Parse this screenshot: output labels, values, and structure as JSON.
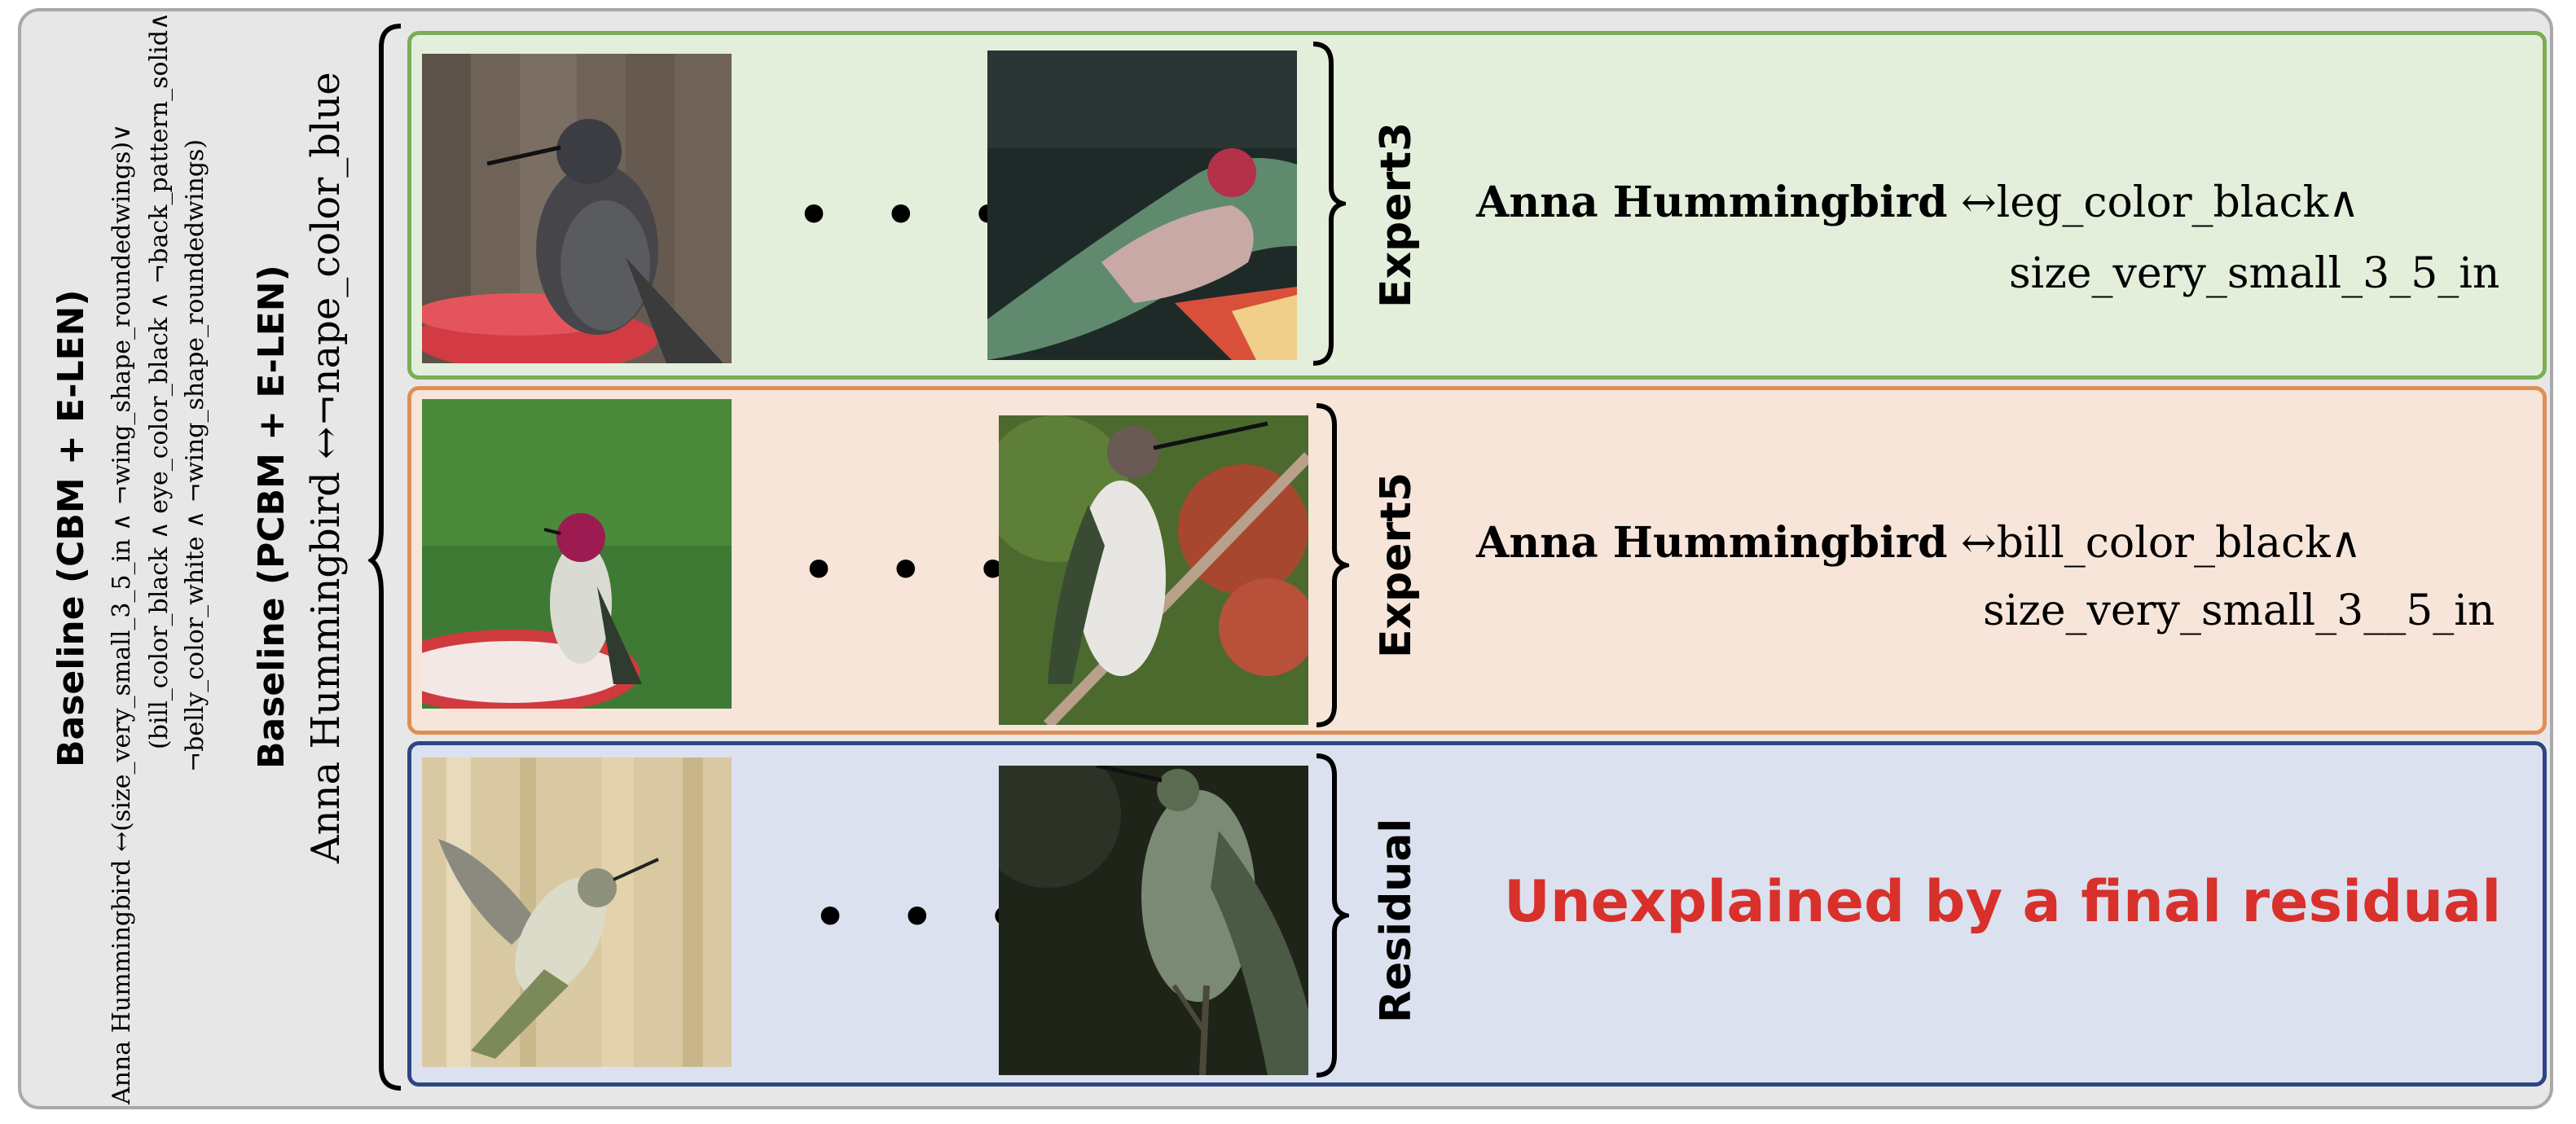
{
  "baseline_cbm": {
    "title": "Baseline (CBM + E-LEN)",
    "line1_class": "Anna Hummingbird",
    "line1_rest": " ↔(size_very_small_3_5_in ∧ ¬wing_shape_roundedwings)∨",
    "line2": "(bill_color_black ∧ eye_color_black ∧ ¬back_pattern_solid∧",
    "line3": "¬belly_color_white ∧ ¬wing_shape_roundedwings)"
  },
  "baseline_pcbm": {
    "title": "Baseline (PCBM + E-LEN)",
    "rule": "Anna Hummingbird ↔¬nape_color_blue"
  },
  "experts": [
    {
      "label": "Expert3",
      "class_name": "Anna Hummingbird",
      "rule_line1": " ↔leg_color_black∧",
      "rule_line2": "size_very_small_3_5_in"
    },
    {
      "label": "Expert5",
      "class_name": "Anna Hummingbird",
      "rule_line1": " ↔bill_color_black∧",
      "rule_line2": "size_very_small_3__5_in"
    }
  ],
  "residual": {
    "label": "Residual",
    "text": "Unexplained by a final residual"
  },
  "ellipsis": "• • •",
  "colors": {
    "expert3_bg": "#e3efdb",
    "expert5_bg": "#f7e5d9",
    "residual_bg": "#dbe1ef",
    "residual_text": "#d8302b"
  }
}
